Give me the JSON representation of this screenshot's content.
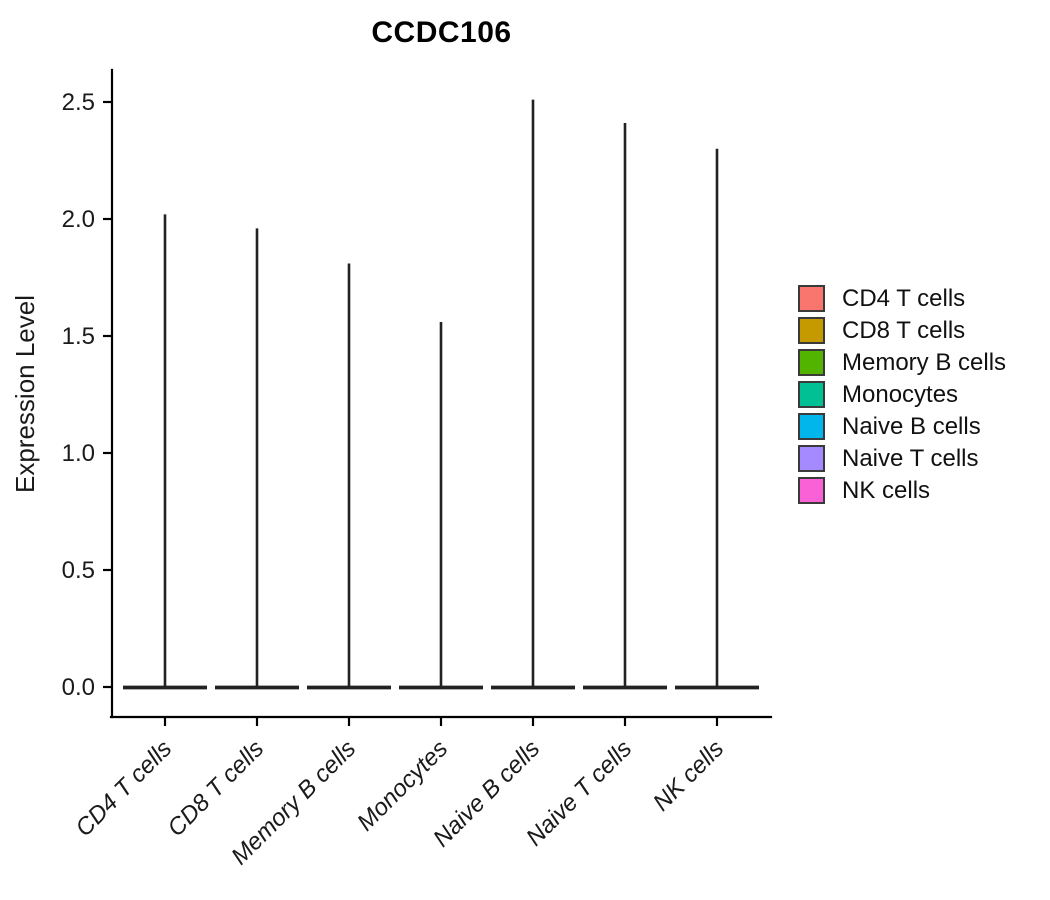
{
  "chart_data": {
    "type": "violin",
    "title": "CCDC106",
    "ylabel": "Expression Level",
    "xlabel": "",
    "categories": [
      "CD4 T cells",
      "CD8 T cells",
      "Memory B cells",
      "Monocytes",
      "Naive B cells",
      "Naive T cells",
      "NK cells"
    ],
    "max_values": [
      2.02,
      1.96,
      1.81,
      1.56,
      2.51,
      2.41,
      2.3
    ],
    "baseline_value": 0.0,
    "y_ticks": [
      0.0,
      0.5,
      1.0,
      1.5,
      2.0,
      2.5
    ],
    "ylim": [
      0,
      2.63
    ],
    "grid": "off",
    "legend_position": "right",
    "shape_note": "each violin is a wide flat base at 0 with a thin vertical spike up to its max value"
  },
  "legend": {
    "items": [
      {
        "label": "CD4 T cells",
        "color": "#F8766D"
      },
      {
        "label": "CD8 T cells",
        "color": "#C49A00"
      },
      {
        "label": "Memory B cells",
        "color": "#53B400"
      },
      {
        "label": "Monocytes",
        "color": "#00C094"
      },
      {
        "label": "Naive B cells",
        "color": "#00B6EB"
      },
      {
        "label": "Naive T cells",
        "color": "#A58AFF"
      },
      {
        "label": "NK cells",
        "color": "#FB61D7"
      }
    ]
  },
  "colors": {
    "axis": "#000000",
    "violin_stroke": "#222222",
    "text": "#1a1a1a",
    "background": "#ffffff"
  }
}
